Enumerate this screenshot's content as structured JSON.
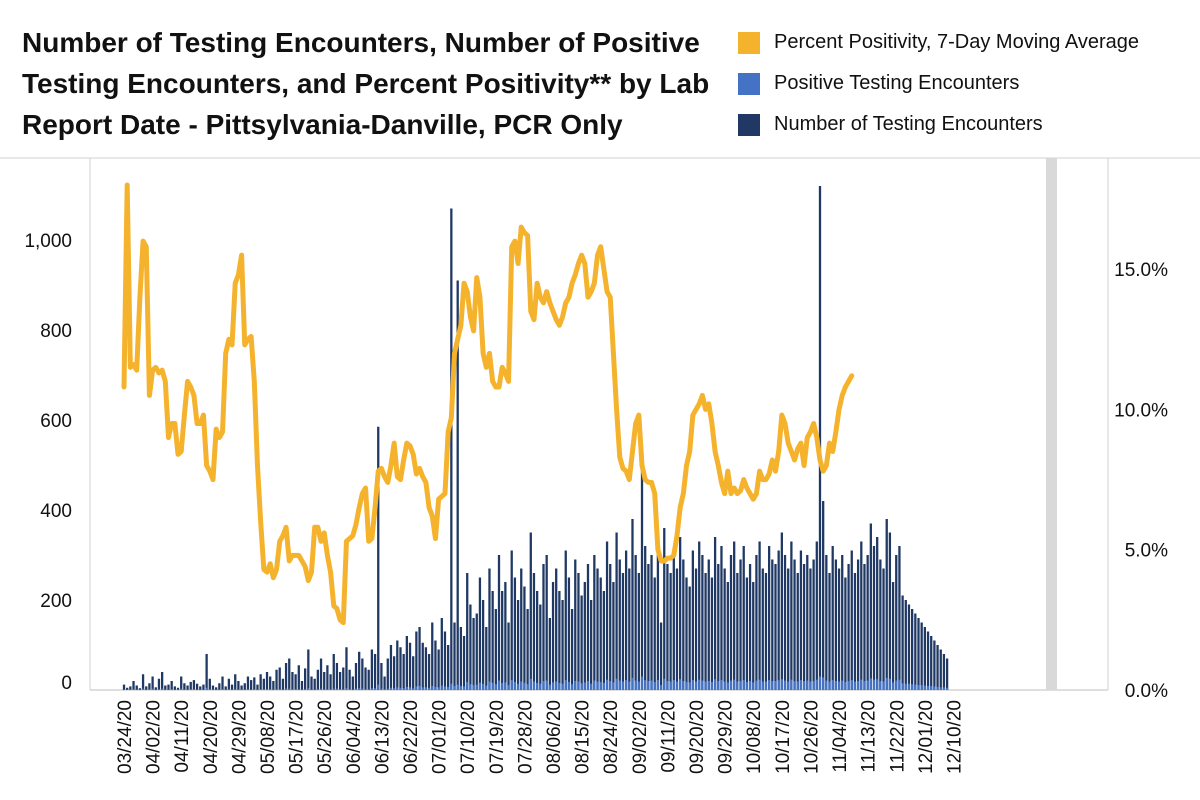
{
  "chart_data": {
    "type": "bar",
    "title": "Number of Testing Encounters, Number of Positive Testing Encounters, and Percent Positivity** by Lab Report Date - Pittsylvania-Danville, PCR Only",
    "legend": [
      {
        "label": "Percent Positivity, 7-Day Moving Average",
        "color": "#F5B22D"
      },
      {
        "label": "Positive Testing Encounters",
        "color": "#4472C4"
      },
      {
        "label": "Number of Testing Encounters",
        "color": "#1F3864"
      }
    ],
    "x_ticks": [
      "03/24/20",
      "04/02/20",
      "04/11/20",
      "04/20/20",
      "04/29/20",
      "05/08/20",
      "05/17/20",
      "05/26/20",
      "06/04/20",
      "06/13/20",
      "06/22/20",
      "07/01/20",
      "07/10/20",
      "07/19/20",
      "07/28/20",
      "08/06/20",
      "08/15/20",
      "08/24/20",
      "09/02/20",
      "09/11/20",
      "09/20/20",
      "09/29/20",
      "10/08/20",
      "10/17/20",
      "10/26/20",
      "11/04/20",
      "11/13/20",
      "11/22/20",
      "12/01/20",
      "12/10/20"
    ],
    "y_left_ticks": [
      {
        "value": 0,
        "label": "0"
      },
      {
        "value": 200,
        "label": "200"
      },
      {
        "value": 400,
        "label": "400"
      },
      {
        "value": 600,
        "label": "600"
      },
      {
        "value": 800,
        "label": "800"
      },
      {
        "value": 1000,
        "label": "1,000"
      }
    ],
    "y_right_ticks": [
      {
        "value": 0,
        "label": "0.0%"
      },
      {
        "value": 5,
        "label": "5.0%"
      },
      {
        "value": 10,
        "label": "10.0%"
      },
      {
        "value": 15,
        "label": "15.0%"
      }
    ],
    "ylim_left": [
      0,
      1200
    ],
    "ylim_right": [
      0,
      18
    ],
    "start_date": "03/24/20",
    "days": 260,
    "series": {
      "testing_encounters": [
        12,
        5,
        8,
        20,
        10,
        4,
        35,
        8,
        15,
        30,
        6,
        25,
        40,
        10,
        12,
        20,
        8,
        5,
        30,
        15,
        10,
        18,
        22,
        14,
        8,
        12,
        80,
        25,
        10,
        6,
        15,
        30,
        8,
        25,
        12,
        35,
        20,
        10,
        15,
        30,
        22,
        28,
        12,
        35,
        25,
        40,
        30,
        20,
        45,
        50,
        25,
        60,
        70,
        40,
        35,
        55,
        20,
        48,
        90,
        30,
        25,
        45,
        70,
        40,
        55,
        35,
        80,
        60,
        40,
        50,
        95,
        45,
        30,
        60,
        85,
        70,
        50,
        45,
        90,
        80,
        585,
        60,
        30,
        70,
        100,
        75,
        110,
        95,
        80,
        120,
        105,
        75,
        130,
        140,
        105,
        95,
        80,
        150,
        110,
        90,
        160,
        130,
        100,
        1070,
        150,
        910,
        140,
        120,
        260,
        190,
        160,
        170,
        250,
        200,
        140,
        270,
        220,
        180,
        300,
        220,
        240,
        150,
        310,
        250,
        200,
        270,
        230,
        180,
        350,
        260,
        220,
        190,
        280,
        300,
        160,
        240,
        270,
        220,
        200,
        310,
        250,
        180,
        290,
        260,
        210,
        240,
        280,
        200,
        300,
        270,
        250,
        220,
        330,
        280,
        240,
        350,
        290,
        260,
        310,
        270,
        380,
        300,
        260,
        520,
        320,
        280,
        300,
        250,
        320,
        150,
        360,
        280,
        260,
        310,
        270,
        340,
        290,
        250,
        230,
        310,
        270,
        330,
        300,
        260,
        290,
        250,
        340,
        280,
        320,
        270,
        240,
        300,
        330,
        260,
        290,
        320,
        250,
        280,
        240,
        300,
        330,
        270,
        260,
        320,
        290,
        280,
        310,
        350,
        300,
        270,
        330,
        290,
        260,
        310,
        280,
        300,
        270,
        290,
        330,
        1120,
        420,
        300,
        260,
        320,
        290,
        270,
        300,
        250,
        280,
        310,
        260,
        290,
        330,
        280,
        300,
        370,
        320,
        340,
        290,
        270,
        380,
        350,
        240,
        300,
        320,
        210,
        200,
        190,
        180,
        170,
        160,
        150,
        140,
        130,
        120,
        110,
        100,
        90,
        80,
        70
      ],
      "positive_encounters": [
        1,
        1,
        1,
        2,
        1,
        1,
        3,
        1,
        2,
        3,
        1,
        2,
        3,
        1,
        1,
        2,
        1,
        1,
        3,
        1,
        1,
        2,
        2,
        1,
        1,
        1,
        5,
        2,
        1,
        1,
        1,
        2,
        1,
        2,
        1,
        2,
        1,
        1,
        1,
        2,
        1,
        2,
        1,
        2,
        2,
        2,
        2,
        1,
        2,
        2,
        1,
        3,
        3,
        2,
        2,
        2,
        1,
        2,
        4,
        1,
        1,
        2,
        3,
        2,
        2,
        2,
        3,
        3,
        2,
        2,
        4,
        2,
        1,
        3,
        4,
        3,
        2,
        2,
        4,
        4,
        12,
        3,
        2,
        3,
        5,
        4,
        6,
        5,
        4,
        7,
        6,
        4,
        8,
        9,
        6,
        6,
        5,
        9,
        7,
        6,
        10,
        8,
        7,
        14,
        9,
        12,
        9,
        8,
        18,
        13,
        11,
        12,
        16,
        14,
        10,
        19,
        16,
        13,
        21,
        16,
        17,
        11,
        22,
        18,
        14,
        19,
        16,
        13,
        25,
        19,
        16,
        14,
        20,
        21,
        12,
        17,
        19,
        16,
        14,
        22,
        18,
        13,
        20,
        19,
        15,
        17,
        20,
        14,
        21,
        19,
        18,
        16,
        23,
        20,
        17,
        25,
        21,
        19,
        22,
        19,
        27,
        21,
        19,
        30,
        22,
        20,
        21,
        18,
        22,
        11,
        25,
        20,
        19,
        22,
        19,
        24,
        20,
        18,
        17,
        22,
        19,
        23,
        21,
        19,
        20,
        18,
        24,
        20,
        22,
        19,
        17,
        21,
        23,
        19,
        20,
        22,
        18,
        20,
        17,
        21,
        23,
        19,
        19,
        22,
        20,
        20,
        22,
        24,
        21,
        19,
        23,
        20,
        19,
        22,
        20,
        21,
        19,
        20,
        23,
        30,
        28,
        21,
        19,
        22,
        20,
        19,
        21,
        18,
        20,
        22,
        19,
        20,
        23,
        20,
        21,
        26,
        23,
        24,
        20,
        19,
        27,
        25,
        17,
        21,
        23,
        15,
        14,
        14,
        13,
        12,
        11,
        11,
        10,
        9,
        9,
        8,
        7,
        6,
        6,
        5
      ],
      "percent_positivity_7day": [
        [
          0,
          10.8
        ],
        [
          1,
          18.0
        ],
        [
          2,
          11.5
        ],
        [
          3,
          11.6
        ],
        [
          4,
          11.4
        ],
        [
          5,
          14.0
        ],
        [
          6,
          16.0
        ],
        [
          7,
          15.8
        ],
        [
          8,
          10.5
        ],
        [
          9,
          11.4
        ],
        [
          10,
          11.5
        ],
        [
          11,
          11.3
        ],
        [
          12,
          11.4
        ],
        [
          13,
          11.0
        ],
        [
          14,
          9.0
        ],
        [
          15,
          9.5
        ],
        [
          16,
          9.5
        ],
        [
          17,
          8.4
        ],
        [
          18,
          8.5
        ],
        [
          19,
          9.8
        ],
        [
          20,
          11.0
        ],
        [
          21,
          10.8
        ],
        [
          22,
          10.5
        ],
        [
          23,
          9.5
        ],
        [
          24,
          9.5
        ],
        [
          25,
          9.8
        ],
        [
          26,
          8.0
        ],
        [
          27,
          7.8
        ],
        [
          28,
          7.5
        ],
        [
          29,
          9.3
        ],
        [
          30,
          9.0
        ],
        [
          31,
          9.2
        ],
        [
          32,
          12.0
        ],
        [
          33,
          12.5
        ],
        [
          34,
          12.3
        ],
        [
          35,
          14.5
        ],
        [
          36,
          14.8
        ],
        [
          37,
          15.5
        ],
        [
          38,
          12.3
        ],
        [
          39,
          12.5
        ],
        [
          40,
          12.6
        ],
        [
          41,
          11.0
        ],
        [
          42,
          8.0
        ],
        [
          43,
          6.0
        ],
        [
          44,
          4.3
        ],
        [
          45,
          4.2
        ],
        [
          46,
          4.5
        ],
        [
          47,
          4.0
        ],
        [
          48,
          4.3
        ],
        [
          49,
          5.3
        ],
        [
          50,
          5.5
        ],
        [
          51,
          5.8
        ],
        [
          52,
          4.6
        ],
        [
          53,
          4.8
        ],
        [
          54,
          4.8
        ],
        [
          55,
          4.8
        ],
        [
          56,
          4.6
        ],
        [
          57,
          4.4
        ],
        [
          58,
          3.9
        ],
        [
          59,
          4.2
        ],
        [
          60,
          5.8
        ],
        [
          61,
          5.8
        ],
        [
          62,
          5.3
        ],
        [
          63,
          5.6
        ],
        [
          64,
          4.8
        ],
        [
          65,
          4.2
        ],
        [
          66,
          3.0
        ],
        [
          67,
          2.9
        ],
        [
          68,
          2.5
        ],
        [
          69,
          2.4
        ],
        [
          70,
          5.3
        ],
        [
          71,
          5.4
        ],
        [
          72,
          5.5
        ],
        [
          73,
          5.9
        ],
        [
          74,
          6.5
        ],
        [
          75,
          7.0
        ],
        [
          76,
          7.2
        ],
        [
          77,
          5.3
        ],
        [
          78,
          5.4
        ],
        [
          79,
          6.5
        ],
        [
          80,
          7.8
        ],
        [
          81,
          7.9
        ],
        [
          82,
          7.6
        ],
        [
          83,
          7.4
        ],
        [
          84,
          8.0
        ],
        [
          85,
          8.8
        ],
        [
          86,
          7.6
        ],
        [
          87,
          7.5
        ],
        [
          88,
          8.2
        ],
        [
          89,
          8.8
        ],
        [
          90,
          8.7
        ],
        [
          91,
          8.4
        ],
        [
          92,
          7.7
        ],
        [
          93,
          7.9
        ],
        [
          94,
          7.6
        ],
        [
          95,
          7.4
        ],
        [
          96,
          6.5
        ],
        [
          97,
          6.2
        ],
        [
          98,
          5.4
        ],
        [
          99,
          6.8
        ],
        [
          100,
          6.9
        ],
        [
          101,
          7.0
        ],
        [
          102,
          9.2
        ],
        [
          103,
          9.7
        ],
        [
          104,
          12.0
        ],
        [
          105,
          12.5
        ],
        [
          106,
          13.0
        ],
        [
          107,
          14.5
        ],
        [
          108,
          14.2
        ],
        [
          109,
          13.3
        ],
        [
          110,
          12.8
        ],
        [
          111,
          14.7
        ],
        [
          112,
          14.0
        ],
        [
          113,
          12.0
        ],
        [
          114,
          11.5
        ],
        [
          115,
          12.0
        ],
        [
          116,
          11.0
        ],
        [
          117,
          10.8
        ],
        [
          118,
          10.8
        ],
        [
          119,
          11.5
        ],
        [
          120,
          11.3
        ],
        [
          121,
          11.0
        ],
        [
          122,
          15.8
        ],
        [
          123,
          16.0
        ],
        [
          124,
          15.2
        ],
        [
          125,
          16.5
        ],
        [
          126,
          16.3
        ],
        [
          127,
          16.2
        ],
        [
          128,
          13.5
        ],
        [
          129,
          13.2
        ],
        [
          130,
          14.5
        ],
        [
          131,
          14.0
        ],
        [
          132,
          13.8
        ],
        [
          133,
          14.2
        ],
        [
          134,
          13.8
        ],
        [
          135,
          13.5
        ],
        [
          136,
          13.2
        ],
        [
          137,
          13.0
        ],
        [
          138,
          13.3
        ],
        [
          139,
          13.8
        ],
        [
          140,
          14.0
        ],
        [
          141,
          14.5
        ],
        [
          142,
          14.8
        ],
        [
          143,
          15.2
        ],
        [
          144,
          15.5
        ],
        [
          145,
          15.2
        ],
        [
          146,
          14.0
        ],
        [
          147,
          14.2
        ],
        [
          148,
          14.5
        ],
        [
          149,
          15.5
        ],
        [
          150,
          15.8
        ],
        [
          151,
          15.0
        ],
        [
          152,
          14.2
        ],
        [
          153,
          14.0
        ],
        [
          154,
          12.0
        ],
        [
          155,
          10.0
        ],
        [
          156,
          8.3
        ],
        [
          157,
          7.9
        ],
        [
          158,
          7.8
        ],
        [
          159,
          7.5
        ],
        [
          160,
          8.5
        ],
        [
          161,
          9.5
        ],
        [
          162,
          9.8
        ],
        [
          163,
          8.0
        ],
        [
          164,
          7.5
        ],
        [
          165,
          7.4
        ],
        [
          166,
          7.4
        ],
        [
          167,
          7.0
        ],
        [
          168,
          5.0
        ],
        [
          169,
          4.6
        ],
        [
          170,
          4.6
        ],
        [
          171,
          4.7
        ],
        [
          172,
          4.7
        ],
        [
          173,
          4.8
        ],
        [
          174,
          5.5
        ],
        [
          175,
          6.5
        ],
        [
          176,
          7.0
        ],
        [
          177,
          8.0
        ],
        [
          178,
          8.5
        ],
        [
          179,
          9.8
        ],
        [
          180,
          10.0
        ],
        [
          181,
          10.2
        ],
        [
          182,
          10.5
        ],
        [
          183,
          10.0
        ],
        [
          184,
          10.2
        ],
        [
          185,
          9.5
        ],
        [
          186,
          8.5
        ],
        [
          187,
          8.0
        ],
        [
          188,
          7.4
        ],
        [
          189,
          7.0
        ],
        [
          190,
          7.8
        ],
        [
          191,
          7.0
        ],
        [
          192,
          7.2
        ],
        [
          193,
          7.0
        ],
        [
          194,
          7.1
        ],
        [
          195,
          7.5
        ],
        [
          196,
          7.2
        ],
        [
          197,
          7.0
        ],
        [
          198,
          6.8
        ],
        [
          199,
          7.0
        ],
        [
          200,
          7.8
        ],
        [
          201,
          7.5
        ],
        [
          202,
          7.5
        ],
        [
          203,
          7.7
        ],
        [
          204,
          8.2
        ],
        [
          205,
          7.8
        ],
        [
          206,
          8.5
        ],
        [
          207,
          9.8
        ],
        [
          208,
          9.5
        ],
        [
          209,
          8.8
        ],
        [
          210,
          8.5
        ],
        [
          211,
          8.2
        ],
        [
          212,
          8.6
        ],
        [
          213,
          8.8
        ],
        [
          214,
          8.0
        ],
        [
          215,
          9.0
        ],
        [
          216,
          9.2
        ],
        [
          217,
          9.5
        ],
        [
          218,
          9.0
        ],
        [
          219,
          8.2
        ],
        [
          220,
          7.8
        ],
        [
          221,
          8.0
        ],
        [
          222,
          8.8
        ],
        [
          223,
          8.5
        ],
        [
          224,
          9.2
        ],
        [
          225,
          10.0
        ],
        [
          226,
          10.5
        ],
        [
          227,
          10.8
        ],
        [
          228,
          11.0
        ],
        [
          229,
          11.2
        ]
      ]
    }
  }
}
